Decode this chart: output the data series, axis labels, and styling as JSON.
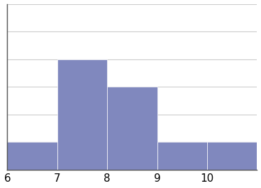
{
  "bin_edges": [
    6,
    7,
    8,
    9,
    10,
    11
  ],
  "bar_heights": [
    1,
    4,
    3,
    1,
    1
  ],
  "bar_color": "#8088be",
  "bar_edgecolor": "#ffffff",
  "bar_linewidth": 0.5,
  "xlim": [
    6,
    11
  ],
  "ylim": [
    0,
    6
  ],
  "xticks": [
    6,
    7,
    8,
    9,
    10
  ],
  "yticks": [
    1,
    2,
    3,
    4,
    5,
    6
  ],
  "grid_color": "#cccccc",
  "grid_linewidth": 0.8,
  "background_color": "#ffffff",
  "tick_fontsize": 11,
  "left_spine_color": "#555555",
  "bottom_spine_color": "#555555"
}
